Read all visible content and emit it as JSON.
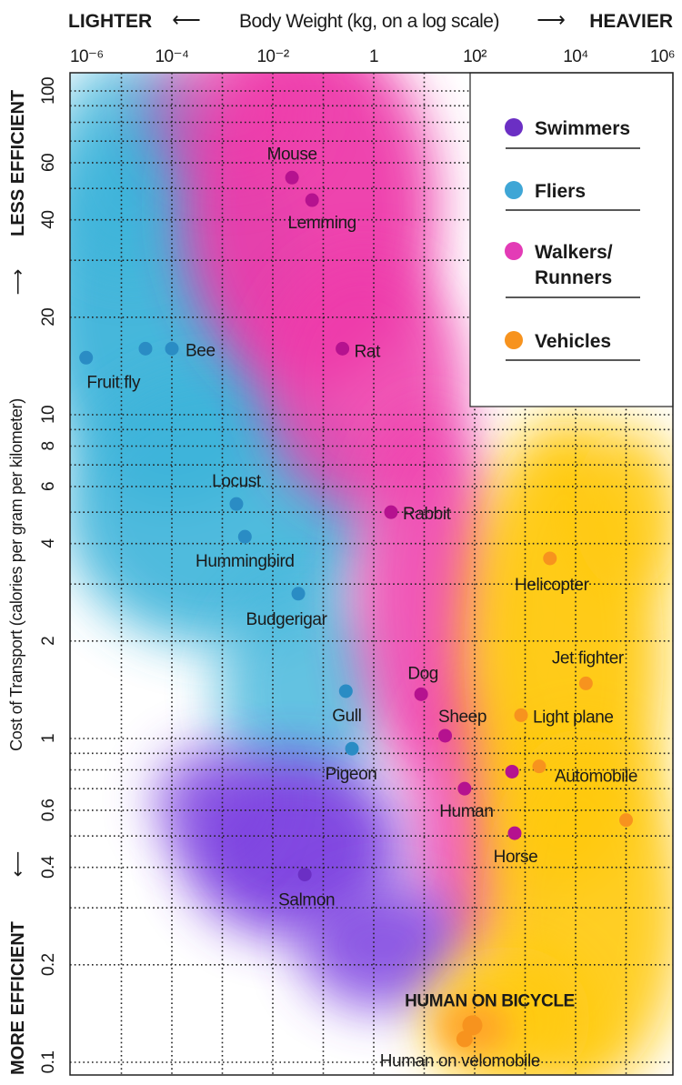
{
  "chart_data": {
    "type": "scatter",
    "x_axis": {
      "label": "Body Weight (kg, on a log scale)",
      "left_word": "LIGHTER",
      "right_word": "HEAVIER",
      "scale": "log",
      "range": [
        1e-06,
        1000000.0
      ],
      "ticks": [
        1e-06,
        0.0001,
        0.01,
        1,
        100.0,
        10000.0,
        1000000.0
      ],
      "tick_labels": [
        "10⁻⁶",
        "10⁻⁴",
        "10⁻²",
        "1",
        "10²",
        "10⁴",
        "10⁶"
      ]
    },
    "y_axis": {
      "label": "Cost of Transport (calories per gram per kilometer)",
      "top_word": "LESS EFFICIENT",
      "bottom_word": "MORE EFFICIENT",
      "scale": "log",
      "range": [
        0.1,
        100
      ],
      "ticks": [
        100,
        60,
        40,
        20,
        10,
        8,
        6,
        4,
        2,
        1,
        0.6,
        0.4,
        0.2,
        0.1
      ],
      "tick_labels": [
        "100",
        "60",
        "40",
        "20",
        "10",
        "8",
        "6",
        "4",
        "2",
        "1",
        "0.6",
        "0.4",
        "0.2",
        "0.1"
      ]
    },
    "grid": true,
    "legend_placement": "top-right",
    "categories": [
      {
        "name": "Swimmers",
        "color": "#6b2fc4",
        "cloud": "#7b3fe0"
      },
      {
        "name": "Fliers",
        "color": "#2a8cc4",
        "cloud": "#3cb4da"
      },
      {
        "name": "Walkers/ Runners",
        "line1": "Walkers/",
        "line2": "Runners",
        "color": "#b5128f",
        "cloud": "#ee3aaa"
      },
      {
        "name": "Vehicles",
        "color": "#f7931e",
        "cloud": "#ffc90a"
      }
    ],
    "points": [
      {
        "label": "Mouse",
        "category": "Walkers/ Runners",
        "x": 0.024,
        "y": 54
      },
      {
        "label": "Lemming",
        "category": "Walkers/ Runners",
        "x": 0.06,
        "y": 46
      },
      {
        "label": "Rat",
        "category": "Walkers/ Runners",
        "x": 0.24,
        "y": 16
      },
      {
        "label": "Fruit fly",
        "category": "Fliers",
        "x": 2e-06,
        "y": 15
      },
      {
        "label": "",
        "category": "Fliers",
        "x": 3e-05,
        "y": 16
      },
      {
        "label": "Bee",
        "category": "Fliers",
        "x": 0.0001,
        "y": 16
      },
      {
        "label": "Locust",
        "category": "Fliers",
        "x": 0.0019,
        "y": 5.3
      },
      {
        "label": "Hummingbird",
        "category": "Fliers",
        "x": 0.0028,
        "y": 4.2
      },
      {
        "label": "Budgerigar",
        "category": "Fliers",
        "x": 0.032,
        "y": 2.8
      },
      {
        "label": "Gull",
        "category": "Fliers",
        "x": 0.28,
        "y": 1.4
      },
      {
        "label": "Pigeon",
        "category": "Fliers",
        "x": 0.37,
        "y": 0.93
      },
      {
        "label": "Rabbit",
        "category": "Walkers/ Runners",
        "x": 2.2,
        "y": 5.0
      },
      {
        "label": "Dog",
        "category": "Walkers/ Runners",
        "x": 8.7,
        "y": 1.37
      },
      {
        "label": "Sheep",
        "category": "Walkers/ Runners",
        "x": 26,
        "y": 1.02
      },
      {
        "label": "Human",
        "category": "Walkers/ Runners",
        "x": 63,
        "y": 0.7
      },
      {
        "label": "",
        "category": "Walkers/ Runners",
        "x": 550,
        "y": 0.79
      },
      {
        "label": "Horse",
        "category": "Walkers/ Runners",
        "x": 620,
        "y": 0.51
      },
      {
        "label": "Salmon",
        "category": "Swimmers",
        "x": 0.043,
        "y": 0.38
      },
      {
        "label": "Helicopter",
        "category": "Vehicles",
        "x": 3100,
        "y": 3.6
      },
      {
        "label": "Jet fighter",
        "category": "Vehicles",
        "x": 16000,
        "y": 1.48
      },
      {
        "label": "Light plane",
        "category": "Vehicles",
        "x": 830,
        "y": 1.18
      },
      {
        "label": "Automobile",
        "category": "Vehicles",
        "x": 1900,
        "y": 0.82
      },
      {
        "label": "",
        "category": "Vehicles",
        "x": 100000,
        "y": 0.56
      },
      {
        "label": "HUMAN ON BICYCLE",
        "category": "Vehicles",
        "x": 90,
        "y": 0.13,
        "emphasis": true
      },
      {
        "label": "Human on velomobile",
        "category": "Vehicles",
        "x": 63,
        "y": 0.118
      }
    ]
  }
}
